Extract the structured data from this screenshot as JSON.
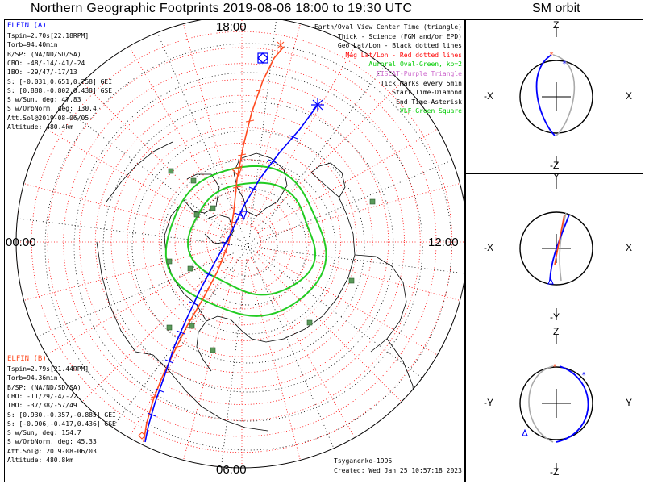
{
  "header": {
    "title": "Northern Geographic Footprints 2019-08-06 18:00 to 19:30 UTC",
    "sm_title": "SM orbit"
  },
  "clock_labels": {
    "top": "18:00",
    "left": "00:00",
    "right": "12:00",
    "bottom": "06:00"
  },
  "elfin_a": {
    "name": "ELFIN (A)",
    "color": "#0000ff",
    "lines": [
      "Tspin=2.70s[22.18RPM]",
      "Torb=94.40min",
      "B/SP: (NA/ND/SD/SA)",
      "CBO: -48/-14/-41/-24",
      "IBO: -29/47/-17/13",
      "S: [-0.031,0.651,0.758] GEI",
      "S: [0.888,-0.802,0.438] GSE",
      "S w/Sun, deg: 47.83",
      "S w/OrbNorm, deg: 130.4",
      "Att.Sol@2019-08-06/05",
      "Altitude: 480.4km"
    ]
  },
  "elfin_b": {
    "name": "ELFIN (B)",
    "color": "#ff4a1f",
    "lines": [
      "Tspin=2.79s[21.44RPM]",
      "Torb=94.36min",
      "B/SP: (NA/ND/SD/SA)",
      "CBO: -11/29/-4/-22",
      "IBO: -37/38/-57/49",
      "S: [0.930,-0.357,-0.885] GEI",
      "S: [-0.906,-0.417,0.436] GSE",
      "S w/Sun, deg: 154.7",
      "S w/OrbNorm, deg: 45.33",
      "Att.Sol@: 2019-08-06/03",
      "Altitude: 480.8km"
    ]
  },
  "legend": [
    {
      "text": "Earth/Oval View Center Time (triangle)",
      "color": "#000000"
    },
    {
      "text": "Thick - Science (FGM and/or EPD)",
      "color": "#000000"
    },
    {
      "text": "Geo Lat/Lon - Black dotted lines",
      "color": "#000000"
    },
    {
      "text": "Mag Lat/Lon - Red dotted lines",
      "color": "#ff0000"
    },
    {
      "text": "Auroral Oval-Green, kp=2",
      "color": "#00cc00"
    },
    {
      "text": "EISCAT-Purple Triangle",
      "color": "#cc66cc"
    },
    {
      "text": "Tick Marks every 5min",
      "color": "#000000"
    },
    {
      "text": "Start Time-Diamond",
      "color": "#000000"
    },
    {
      "text": "End Time-Asterisk",
      "color": "#000000"
    },
    {
      "text": "VLF-Green Square",
      "color": "#00cc00"
    }
  ],
  "footer": {
    "model": "Tsyganenko-1996",
    "created": "Created: Wed Jan 25 10:57:18 2023"
  },
  "sm_panels": [
    {
      "top": "Z",
      "bottom": "-Z",
      "left": "-X",
      "right": "X"
    },
    {
      "top": "Y",
      "bottom": "-Y",
      "left": "-X",
      "right": "X"
    },
    {
      "top": "Z",
      "bottom": "-Z",
      "left": "-Y",
      "right": "Y"
    }
  ],
  "chart_data": [
    {
      "type": "polar-map",
      "title": "Northern Geographic Footprints 2019-08-06 18:00 to 19:30 UTC",
      "projection": "north-polar",
      "geo_lat_circles_deg": [
        80,
        70,
        60,
        50,
        40,
        30,
        20
      ],
      "mag_lat_circles_deg": [
        85,
        80,
        75,
        70,
        65,
        60,
        55,
        50,
        45,
        40,
        35,
        30,
        25,
        20
      ],
      "mlt_labels": [
        "18:00",
        "00:00",
        "12:00",
        "06:00"
      ],
      "auroral_oval_kp": 2,
      "tick_interval_min": 5,
      "series": [
        {
          "name": "ELFIN (A)",
          "color": "#0000ff"
        },
        {
          "name": "ELFIN (B)",
          "color": "#ff4a1f"
        }
      ]
    },
    {
      "type": "scatter",
      "title": "SM orbit",
      "axes": [
        "X",
        "Z"
      ]
    },
    {
      "type": "scatter",
      "title": "SM orbit",
      "axes": [
        "X",
        "Y"
      ]
    },
    {
      "type": "scatter",
      "title": "SM orbit",
      "axes": [
        "Y",
        "Z"
      ]
    }
  ]
}
